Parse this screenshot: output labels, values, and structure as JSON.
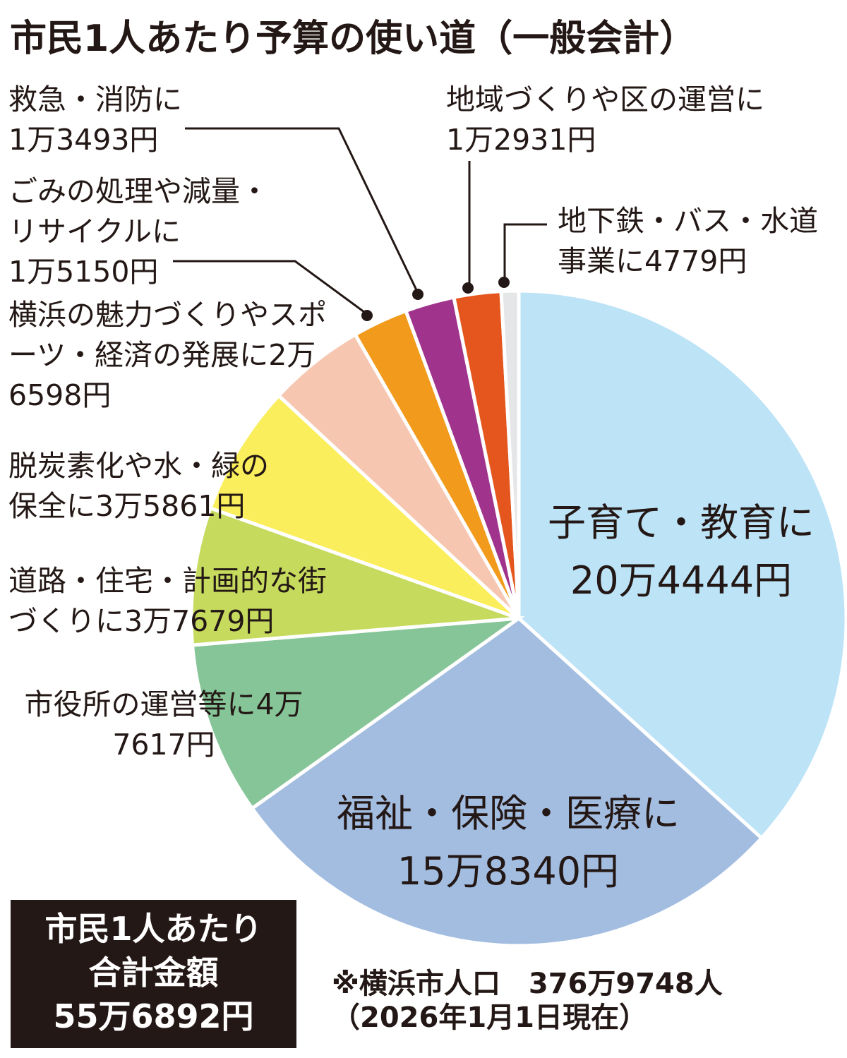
{
  "chart_data": {
    "type": "pie",
    "title": "市民1人あたり予算の使い道（一般会計）",
    "categories": [
      "子育て・教育に",
      "福祉・保険・医療に",
      "市役所の運営等に",
      "道路・住宅・計画的な街づくりに",
      "脱炭素化や水・緑の保全に",
      "横浜の魅力づくりやスポーツ・経済の発展に",
      "ごみの処理や減量・リサイクルに",
      "救急・消防に",
      "地域づくりや区の運営に",
      "地下鉄・バス・水道事業に"
    ],
    "values": [
      204444,
      158340,
      47617,
      37679,
      35861,
      26598,
      15150,
      13493,
      12931,
      4779
    ],
    "value_labels": [
      "20万4444円",
      "15万8340円",
      "4万7617円",
      "3万7679円",
      "3万5861円",
      "2万6598円",
      "1万5150円",
      "1万3493円",
      "1万2931円",
      "4779円"
    ],
    "colors": [
      "#bde3f7",
      "#a3bde1",
      "#86c597",
      "#c6da5e",
      "#fbee5c",
      "#f6c6b0",
      "#f29a1b",
      "#a0348d",
      "#e4561d",
      "#e5e6e7"
    ],
    "total": {
      "label": [
        "市民1人あたり",
        "合計金額"
      ],
      "amount": "55万6892円"
    },
    "notes": [
      "※横浜市人口　376万9748人",
      "（2026年1月1日現在）"
    ]
  }
}
